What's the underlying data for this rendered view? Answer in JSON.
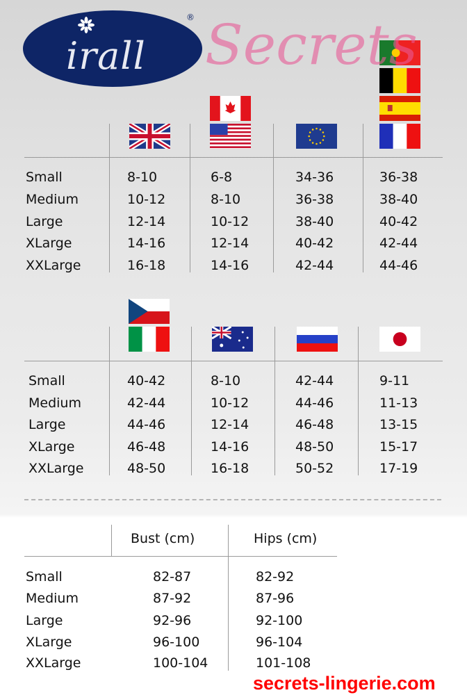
{
  "logo": {
    "text": "irall",
    "registered": "®"
  },
  "tables": [
    {
      "flags": [
        [
          "uk"
        ],
        [
          "canada",
          "usa"
        ],
        [
          "eu"
        ],
        [
          "portugal",
          "belgium",
          "spain",
          "france"
        ]
      ],
      "rows": [
        {
          "label": "Small",
          "values": [
            "8-10",
            "6-8",
            "34-36",
            "36-38"
          ]
        },
        {
          "label": "Medium",
          "values": [
            "10-12",
            "8-10",
            "36-38",
            "38-40"
          ]
        },
        {
          "label": "Large",
          "values": [
            "12-14",
            "10-12",
            "38-40",
            "40-42"
          ]
        },
        {
          "label": "XLarge",
          "values": [
            "14-16",
            "12-14",
            "40-42",
            "42-44"
          ]
        },
        {
          "label": "XXLarge",
          "values": [
            "16-18",
            "14-16",
            "42-44",
            "44-46"
          ]
        }
      ]
    },
    {
      "flags": [
        [
          "czech-republic",
          "italy"
        ],
        [
          "australia"
        ],
        [
          "russia"
        ],
        [
          "japan"
        ]
      ],
      "rows": [
        {
          "label": "Small",
          "values": [
            "40-42",
            "8-10",
            "42-44",
            "9-11"
          ]
        },
        {
          "label": "Medium",
          "values": [
            "42-44",
            "10-12",
            "44-46",
            "11-13"
          ]
        },
        {
          "label": "Large",
          "values": [
            "44-46",
            "12-14",
            "46-48",
            "13-15"
          ]
        },
        {
          "label": "XLarge",
          "values": [
            "46-48",
            "14-16",
            "48-50",
            "15-17"
          ]
        },
        {
          "label": "XXLarge",
          "values": [
            "48-50",
            "16-18",
            "50-52",
            "17-19"
          ]
        }
      ]
    }
  ],
  "measurements": {
    "headers": [
      "Bust (cm)",
      "Hips (cm)"
    ],
    "rows": [
      {
        "label": "Small",
        "values": [
          "82-87",
          "82-92"
        ]
      },
      {
        "label": "Medium",
        "values": [
          "87-92",
          "87-96"
        ]
      },
      {
        "label": "Large",
        "values": [
          "92-96",
          "92-100"
        ]
      },
      {
        "label": "XLarge",
        "values": [
          "96-100",
          "96-104"
        ]
      },
      {
        "label": "XXLarge",
        "values": [
          "100-104",
          "101-108"
        ]
      }
    ]
  },
  "watermark": {
    "script": "Secrets",
    "url": "secrets-lingerie.com"
  }
}
